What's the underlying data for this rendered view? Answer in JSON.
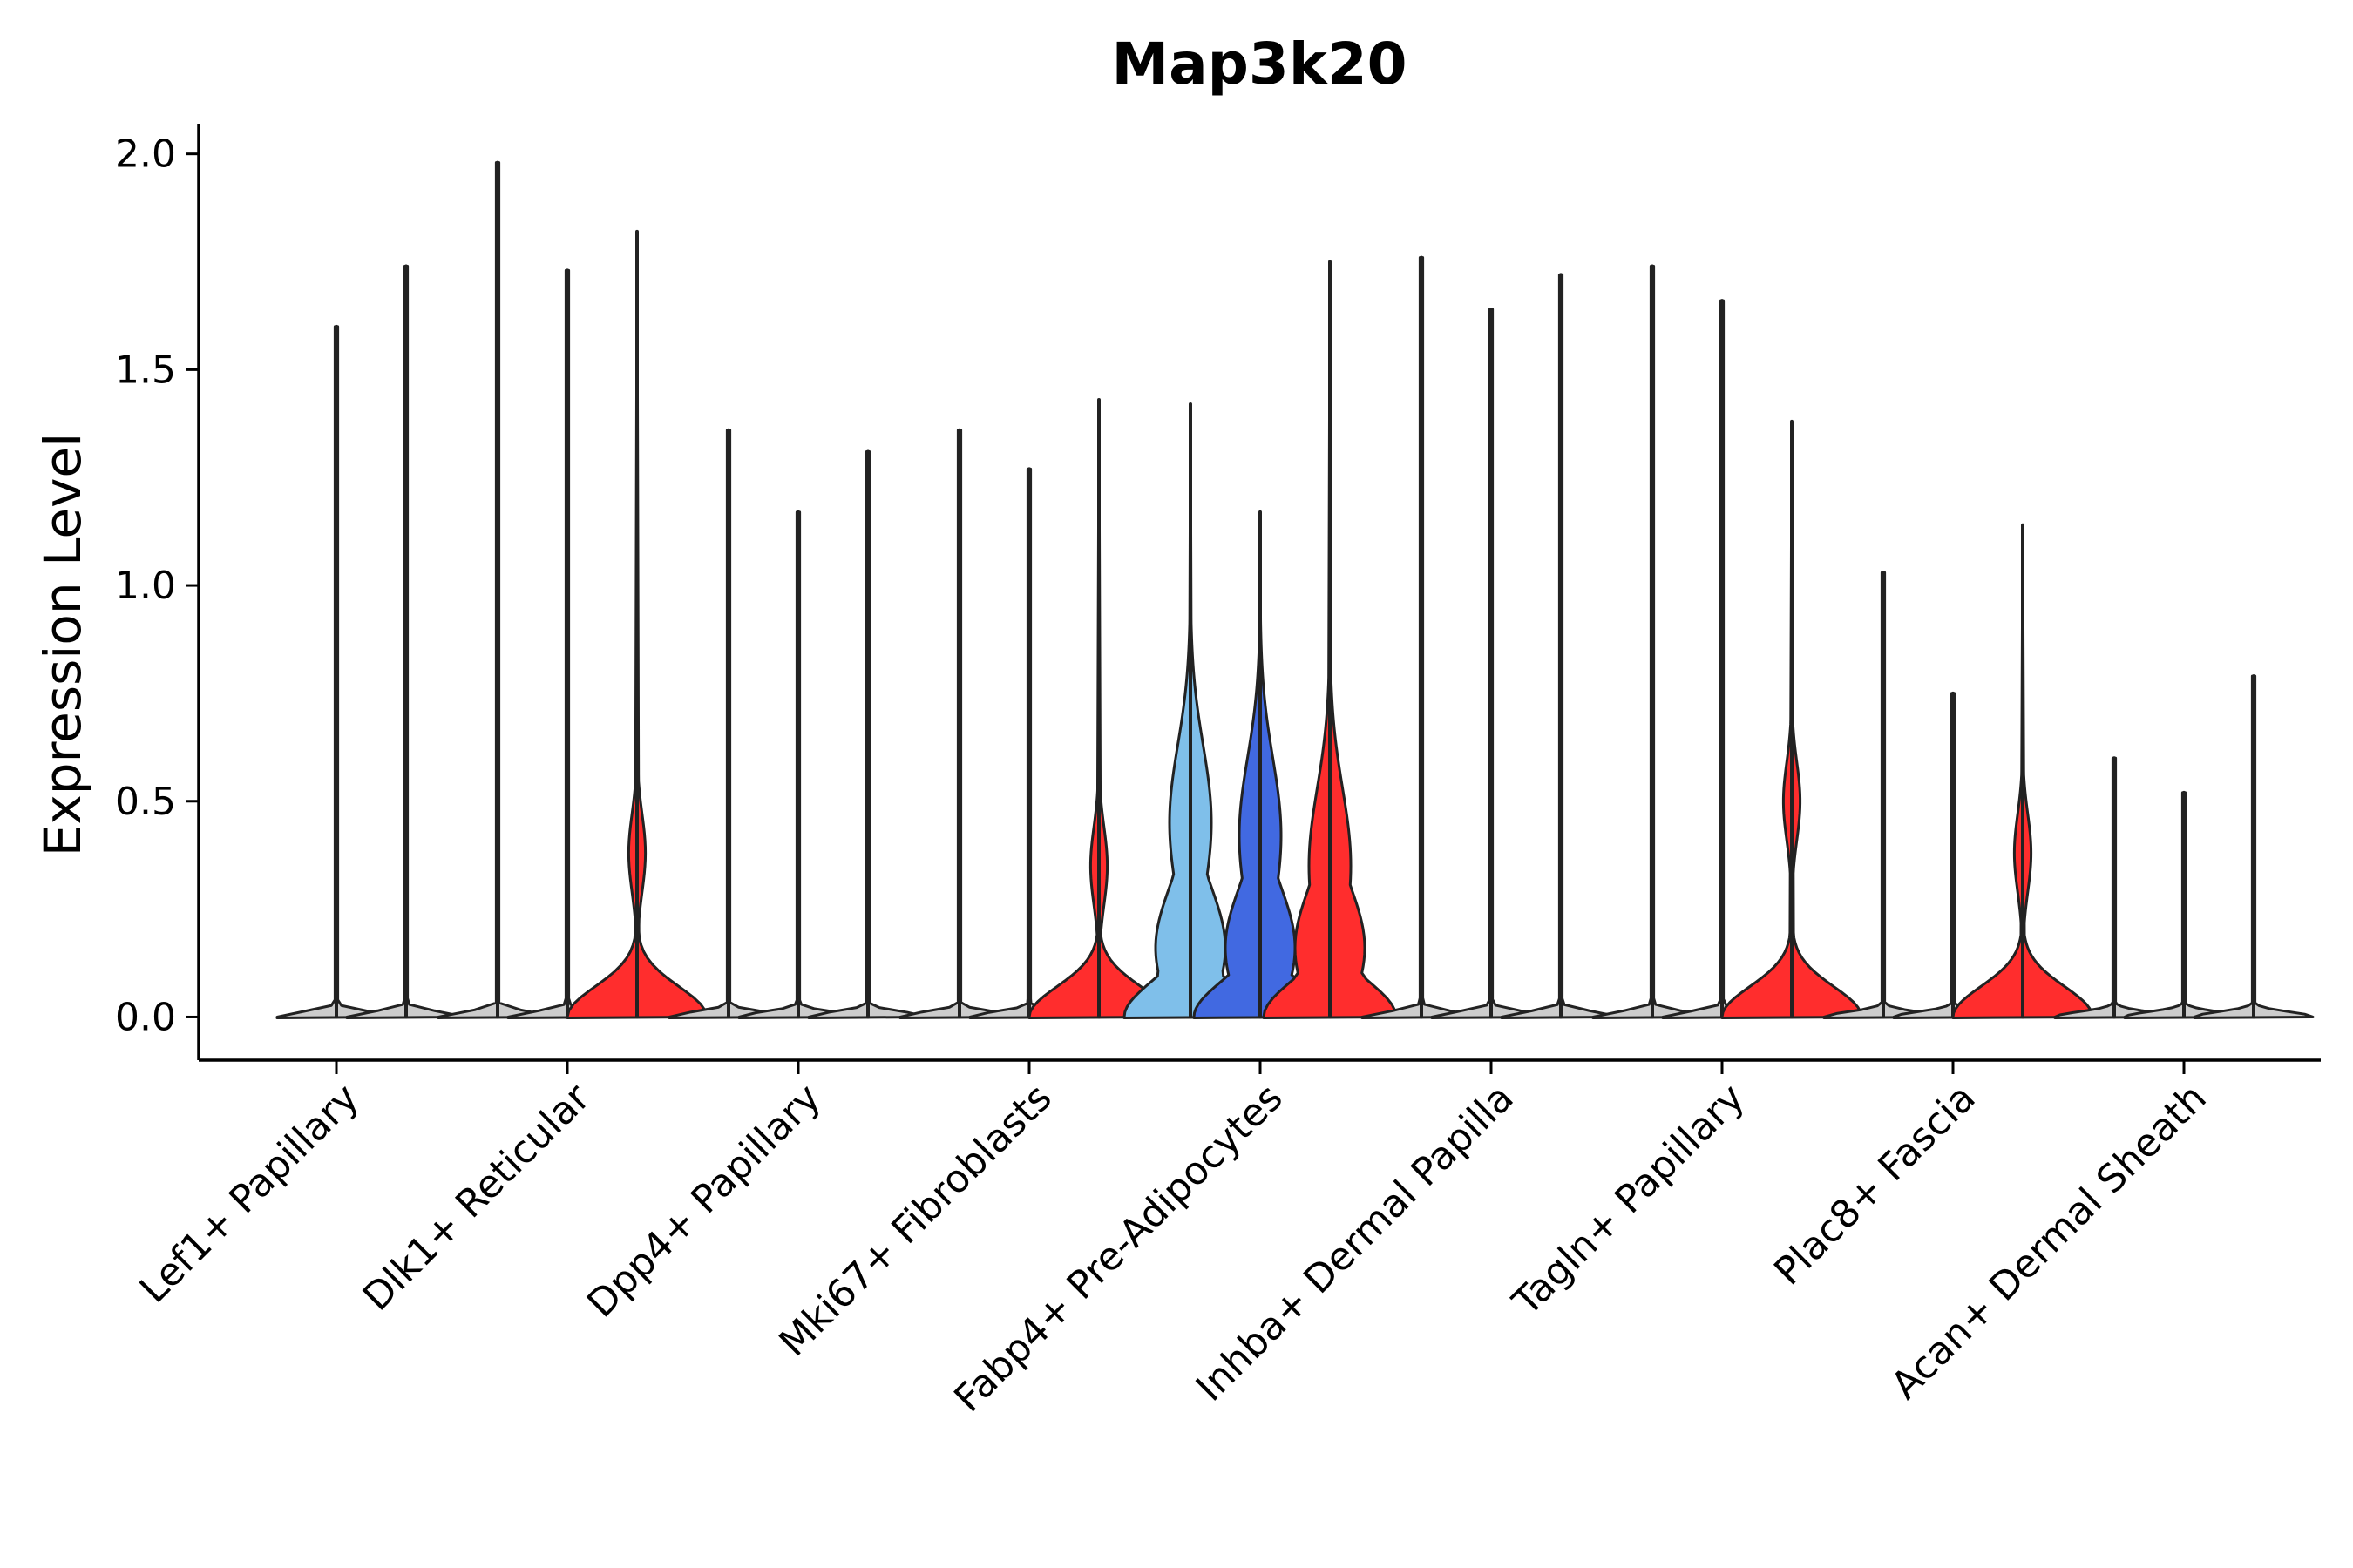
{
  "chart_data": {
    "type": "violin",
    "title": "Map3k20",
    "xlabel": "",
    "ylabel": "Expression Level",
    "ylim": [
      -0.1,
      2.07
    ],
    "yticks": [
      0.0,
      0.5,
      1.0,
      1.5,
      2.0
    ],
    "ytick_labels": [
      "0.0",
      "0.5",
      "1.0",
      "1.5",
      "2.0"
    ],
    "grid": false,
    "legend": "none",
    "colors": {
      "gray": "#cccccc",
      "red": "#ff2d2d",
      "light_blue": "#7fbfea",
      "blue": "#4169e1"
    },
    "categories": [
      "Lef1+ Papillary",
      "Dlk1+ Reticular",
      "Dpp4+ Papillary",
      "Mki67+ Fibroblasts",
      "Fabp4+ Pre-Adipocytes",
      "Inhba+ Dermal Papilla",
      "Tagln+ Papillary",
      "Plac8+ Fascia",
      "Acan+ Dermal Sheath"
    ],
    "violins": [
      {
        "category": 0,
        "slot": 0,
        "max": 1.6,
        "shape": "flat",
        "color": "gray"
      },
      {
        "category": 0,
        "slot": 1,
        "max": 1.74,
        "shape": "flat",
        "color": "gray"
      },
      {
        "category": 1,
        "slot": -1,
        "max": 1.98,
        "shape": "flat",
        "color": "gray"
      },
      {
        "category": 1,
        "slot": 0,
        "max": 1.73,
        "shape": "flat",
        "color": "gray"
      },
      {
        "category": 1,
        "slot": 1,
        "max": 1.82,
        "shape": "bimodal",
        "color": "red",
        "mode": 0.38
      },
      {
        "category": 2,
        "slot": -1,
        "max": 1.36,
        "shape": "flat",
        "color": "gray"
      },
      {
        "category": 2,
        "slot": 0,
        "max": 1.17,
        "shape": "flat",
        "color": "gray"
      },
      {
        "category": 2,
        "slot": 1,
        "max": 1.31,
        "shape": "flat",
        "color": "gray"
      },
      {
        "category": 3,
        "slot": -1,
        "max": 1.36,
        "shape": "flat",
        "color": "gray"
      },
      {
        "category": 3,
        "slot": 0,
        "max": 1.27,
        "shape": "flat",
        "color": "gray"
      },
      {
        "category": 3,
        "slot": 1,
        "max": 1.43,
        "shape": "bimodal",
        "color": "red",
        "mode": 0.35
      },
      {
        "category": 4,
        "slot": -1,
        "max": 1.42,
        "shape": "broad",
        "color": "light_blue",
        "mode": 0.45
      },
      {
        "category": 4,
        "slot": 0,
        "max": 1.17,
        "shape": "broad",
        "color": "blue",
        "mode": 0.42
      },
      {
        "category": 4,
        "slot": 1,
        "max": 1.75,
        "shape": "broad",
        "color": "red",
        "mode": 0.35
      },
      {
        "category": 5,
        "slot": -1,
        "max": 1.76,
        "shape": "flat",
        "color": "gray"
      },
      {
        "category": 5,
        "slot": 0,
        "max": 1.64,
        "shape": "flat",
        "color": "gray"
      },
      {
        "category": 5,
        "slot": 1,
        "max": 1.72,
        "shape": "flat",
        "color": "gray"
      },
      {
        "category": 6,
        "slot": -1,
        "max": 1.74,
        "shape": "flat",
        "color": "gray"
      },
      {
        "category": 6,
        "slot": 0,
        "max": 1.66,
        "shape": "flat",
        "color": "gray"
      },
      {
        "category": 6,
        "slot": 1,
        "max": 1.38,
        "shape": "bimodal",
        "color": "red",
        "mode": 0.5
      },
      {
        "category": 7,
        "slot": -1,
        "max": 1.03,
        "shape": "flat",
        "color": "gray"
      },
      {
        "category": 7,
        "slot": 0,
        "max": 0.75,
        "shape": "flat",
        "color": "gray"
      },
      {
        "category": 7,
        "slot": 1,
        "max": 1.14,
        "shape": "bimodal",
        "color": "red",
        "mode": 0.38
      },
      {
        "category": 8,
        "slot": -1,
        "max": 0.6,
        "shape": "flat",
        "color": "gray"
      },
      {
        "category": 8,
        "slot": 0,
        "max": 0.52,
        "shape": "flat",
        "color": "gray"
      },
      {
        "category": 8,
        "slot": 1,
        "max": 0.79,
        "shape": "flat",
        "color": "gray"
      }
    ]
  }
}
